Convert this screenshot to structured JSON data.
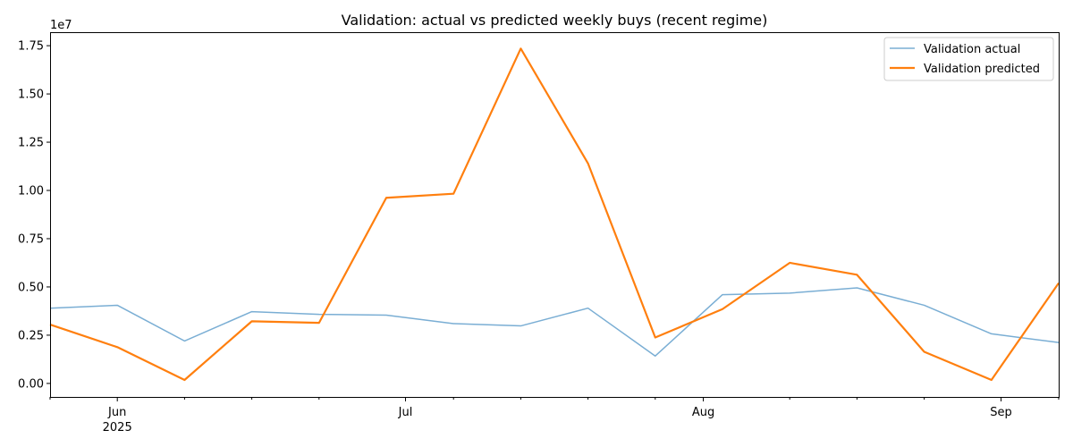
{
  "chart_data": {
    "type": "line",
    "title": "Validation: actual vs predicted weekly buys (recent regime)",
    "xlabel": "",
    "ylabel": "",
    "y_multiplier_label": "1e7",
    "x": [
      "2025-05-25",
      "2025-06-01",
      "2025-06-08",
      "2025-06-15",
      "2025-06-22",
      "2025-06-29",
      "2025-07-06",
      "2025-07-13",
      "2025-07-20",
      "2025-07-27",
      "2025-08-03",
      "2025-08-10",
      "2025-08-17",
      "2025-08-24",
      "2025-08-31",
      "2025-09-07"
    ],
    "xlim": [
      "2025-05-25",
      "2025-09-07"
    ],
    "x_ticks": [
      {
        "date": "2025-06-01",
        "label": "Jun",
        "sublabel": "2025"
      },
      {
        "date": "2025-07-01",
        "label": "Jul",
        "sublabel": ""
      },
      {
        "date": "2025-08-01",
        "label": "Aug",
        "sublabel": ""
      },
      {
        "date": "2025-09-01",
        "label": "Sep",
        "sublabel": ""
      }
    ],
    "x_minor_ticks": [
      "2025-05-25",
      "2025-06-08",
      "2025-06-15",
      "2025-06-22",
      "2025-07-06",
      "2025-07-13",
      "2025-07-20",
      "2025-07-27",
      "2025-08-10",
      "2025-08-17",
      "2025-08-24",
      "2025-09-07"
    ],
    "ylim": [
      -700000,
      18200000
    ],
    "y_ticks": [
      {
        "value": 0,
        "label": "0.00"
      },
      {
        "value": 2500000,
        "label": "0.25"
      },
      {
        "value": 5000000,
        "label": "0.50"
      },
      {
        "value": 7500000,
        "label": "0.75"
      },
      {
        "value": 10000000,
        "label": "1.00"
      },
      {
        "value": 12500000,
        "label": "1.25"
      },
      {
        "value": 15000000,
        "label": "1.50"
      },
      {
        "value": 17500000,
        "label": "1.75"
      }
    ],
    "grid": false,
    "legend_position": "top-right",
    "series": [
      {
        "name": "Validation actual",
        "color": "#7aaed4",
        "values": [
          3900000,
          4050000,
          2200000,
          3720000,
          3580000,
          3540000,
          3100000,
          2980000,
          3900000,
          1420000,
          4600000,
          4680000,
          4950000,
          4050000,
          2570000,
          2120000
        ]
      },
      {
        "name": "Validation predicted",
        "color": "#ff7f0e",
        "values": [
          3050000,
          1880000,
          180000,
          3220000,
          3140000,
          9620000,
          9830000,
          17350000,
          11400000,
          2380000,
          3850000,
          6250000,
          5630000,
          1640000,
          180000,
          5200000
        ]
      }
    ]
  }
}
